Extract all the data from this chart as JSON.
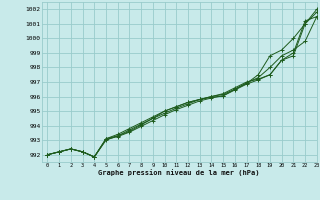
{
  "title": "Graphe pression niveau de la mer (hPa)",
  "bg_color": "#c8eaea",
  "grid_color": "#99cccc",
  "line_color": "#1e5c1e",
  "xlim": [
    -0.5,
    23
  ],
  "ylim": [
    991.5,
    1002.5
  ],
  "yticks": [
    992,
    993,
    994,
    995,
    996,
    997,
    998,
    999,
    1000,
    1001,
    1002
  ],
  "xticks": [
    0,
    1,
    2,
    3,
    4,
    5,
    6,
    7,
    8,
    9,
    10,
    11,
    12,
    13,
    14,
    15,
    16,
    17,
    18,
    19,
    20,
    21,
    22,
    23
  ],
  "series": {
    "line1": [
      992.0,
      992.2,
      992.4,
      992.2,
      991.85,
      993.1,
      993.4,
      993.8,
      994.2,
      994.6,
      995.0,
      995.3,
      995.6,
      995.8,
      996.0,
      996.15,
      996.5,
      996.9,
      997.5,
      998.8,
      999.2,
      1000.0,
      1001.0,
      1002.0
    ],
    "line2": [
      992.0,
      992.2,
      992.4,
      992.2,
      991.85,
      993.05,
      993.25,
      993.55,
      993.95,
      994.35,
      994.75,
      995.1,
      995.4,
      995.7,
      995.9,
      996.05,
      996.45,
      996.85,
      997.15,
      997.5,
      998.5,
      999.0,
      1001.2,
      1001.5
    ],
    "line3": [
      992.0,
      992.2,
      992.4,
      992.2,
      991.85,
      993.1,
      993.3,
      993.6,
      994.05,
      994.5,
      994.85,
      995.2,
      995.5,
      995.8,
      995.95,
      996.05,
      996.5,
      996.95,
      997.3,
      998.0,
      998.8,
      999.2,
      999.8,
      1001.5
    ],
    "line4": [
      992.0,
      992.2,
      992.4,
      992.2,
      991.85,
      993.0,
      993.3,
      993.7,
      994.1,
      994.5,
      995.0,
      995.3,
      995.6,
      995.8,
      996.0,
      996.2,
      996.6,
      997.0,
      997.2,
      997.5,
      998.5,
      998.8,
      1001.0,
      1001.8
    ]
  }
}
